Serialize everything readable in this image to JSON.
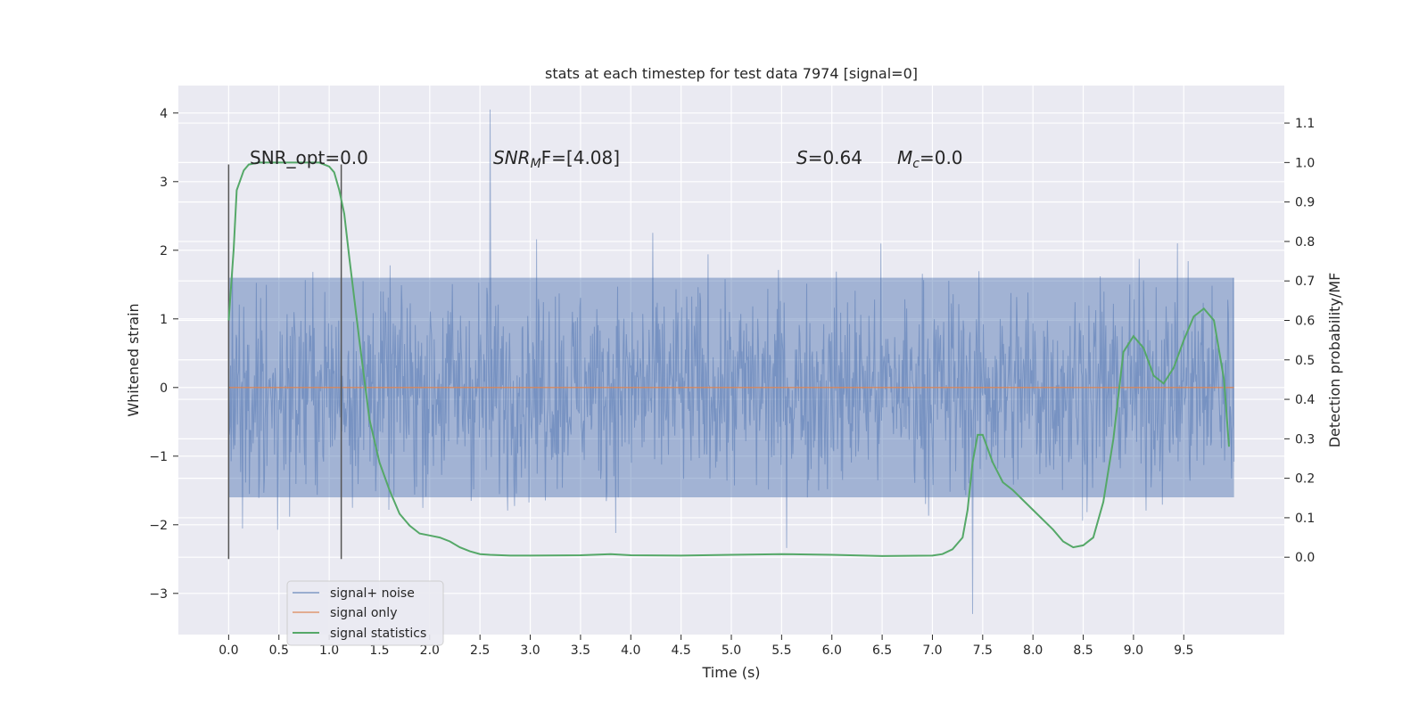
{
  "chart_data": {
    "type": "line",
    "title": "stats at each timestep for test data 7974 [signal=0]",
    "xlabel": "Time (s)",
    "ylabel_left": "Whitened strain",
    "ylabel_right": "Detection probability/MF",
    "xlim": [
      -0.5,
      10.5
    ],
    "ylim_left": [
      -3.6,
      4.4
    ],
    "ylim_right": [
      -0.196,
      1.195
    ],
    "xticks": [
      "0.0",
      "0.5",
      "1.0",
      "1.5",
      "2.0",
      "2.5",
      "3.0",
      "3.5",
      "4.0",
      "4.5",
      "5.0",
      "5.5",
      "6.0",
      "6.5",
      "7.0",
      "7.5",
      "8.0",
      "8.5",
      "9.0",
      "9.5"
    ],
    "yticks_left": [
      "−3",
      "−2",
      "−1",
      "0",
      "1",
      "2",
      "3",
      "4"
    ],
    "yticks_right": [
      "0.0",
      "0.1",
      "0.2",
      "0.3",
      "0.4",
      "0.5",
      "0.6",
      "0.7",
      "0.8",
      "0.9",
      "1.0",
      "1.1"
    ],
    "grid": true,
    "legend_position": "lower-left",
    "annotations": {
      "snr_opt": "SNR_opt=0.0",
      "snr_mf_base": "SNR",
      "snr_mf_sub": "M",
      "snr_mf_rest": "F=[4.08]",
      "s_label": "S",
      "s_value": "=0.64",
      "mc_base": "M",
      "mc_sub": "c",
      "mc_value": "=0.0"
    },
    "vertical_markers_x": [
      0.0,
      1.12
    ],
    "series": [
      {
        "name": "signal+ noise",
        "color": "#4c72b0",
        "note_range": [
          -1.6,
          1.6
        ],
        "peak_x": [
          2.6,
          7.4
        ],
        "peak_y": [
          4.05,
          -3.3
        ]
      },
      {
        "name": "signal only",
        "color": "#dd8452",
        "x": [
          0.0,
          10.0
        ],
        "y": [
          0.0,
          0.0
        ]
      },
      {
        "name": "signal statistics",
        "color": "#55a868",
        "axis": "right",
        "x": [
          0.0,
          0.05,
          0.08,
          0.15,
          0.2,
          0.3,
          0.5,
          0.7,
          0.9,
          1.0,
          1.05,
          1.1,
          1.15,
          1.2,
          1.3,
          1.4,
          1.5,
          1.6,
          1.7,
          1.8,
          1.9,
          2.0,
          2.1,
          2.2,
          2.3,
          2.4,
          2.5,
          2.6,
          2.8,
          3.0,
          3.5,
          3.8,
          4.0,
          4.5,
          5.0,
          5.5,
          6.0,
          6.5,
          7.0,
          7.1,
          7.2,
          7.3,
          7.35,
          7.4,
          7.45,
          7.5,
          7.6,
          7.7,
          7.8,
          8.0,
          8.2,
          8.3,
          8.4,
          8.5,
          8.6,
          8.7,
          8.8,
          8.9,
          9.0,
          9.1,
          9.2,
          9.3,
          9.4,
          9.5,
          9.6,
          9.7,
          9.8,
          9.9,
          9.95
        ],
        "y": [
          0.6,
          0.78,
          0.93,
          0.98,
          0.995,
          1.0,
          1.0,
          1.0,
          1.0,
          0.99,
          0.975,
          0.93,
          0.87,
          0.76,
          0.55,
          0.35,
          0.24,
          0.17,
          0.11,
          0.08,
          0.06,
          0.055,
          0.05,
          0.04,
          0.025,
          0.015,
          0.008,
          0.006,
          0.004,
          0.004,
          0.005,
          0.008,
          0.005,
          0.004,
          0.006,
          0.008,
          0.006,
          0.003,
          0.004,
          0.008,
          0.02,
          0.05,
          0.12,
          0.24,
          0.31,
          0.31,
          0.24,
          0.19,
          0.17,
          0.12,
          0.07,
          0.04,
          0.025,
          0.03,
          0.05,
          0.14,
          0.3,
          0.52,
          0.56,
          0.53,
          0.46,
          0.44,
          0.48,
          0.55,
          0.61,
          0.63,
          0.6,
          0.45,
          0.28
        ]
      }
    ]
  }
}
